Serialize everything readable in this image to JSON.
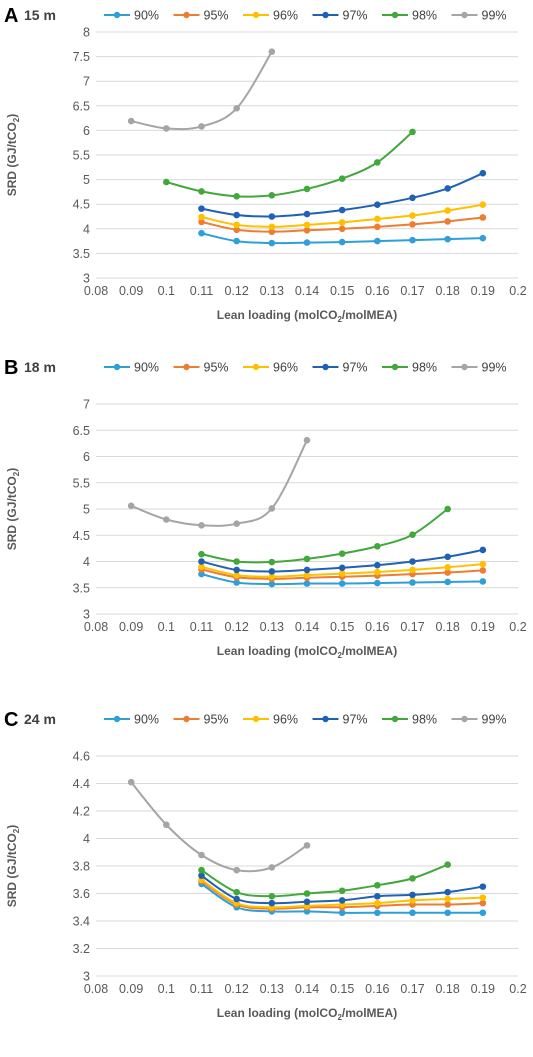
{
  "chart_data": [
    {
      "type": "line",
      "panel": "A",
      "title": "15 m",
      "xlabel": "Lean loading (molCO",
      "xlabel_sub": "2",
      "xlabel_end": "/molMEA)",
      "ylabel": "SRD (GJ/tCO",
      "ylabel_sub": "2",
      "ylabel_end": ")",
      "xlim": [
        0.08,
        0.2
      ],
      "ylim": [
        3,
        8
      ],
      "x_ticks": [
        "0.08",
        "0.09",
        "0.1",
        "0.11",
        "0.12",
        "0.13",
        "0.14",
        "0.15",
        "0.16",
        "0.17",
        "0.18",
        "0.19",
        "0.2"
      ],
      "y_ticks": [
        "3",
        "3.5",
        "4",
        "4.5",
        "5",
        "5.5",
        "6",
        "6.5",
        "7",
        "7.5",
        "8"
      ],
      "grid": true,
      "legend": "top",
      "series": [
        {
          "name": "90%",
          "color": "#2E9FD8",
          "x": [
            0.11,
            0.12,
            0.13,
            0.14,
            0.15,
            0.16,
            0.17,
            0.18,
            0.19
          ],
          "y": [
            3.91,
            3.75,
            3.71,
            3.72,
            3.73,
            3.75,
            3.77,
            3.79,
            3.81
          ]
        },
        {
          "name": "95%",
          "color": "#ED7D31",
          "x": [
            0.11,
            0.12,
            0.13,
            0.14,
            0.15,
            0.16,
            0.17,
            0.18,
            0.19
          ],
          "y": [
            4.14,
            3.98,
            3.94,
            3.97,
            4.0,
            4.04,
            4.09,
            4.15,
            4.23
          ]
        },
        {
          "name": "96%",
          "color": "#FFC000",
          "x": [
            0.11,
            0.12,
            0.13,
            0.14,
            0.15,
            0.16,
            0.17,
            0.18,
            0.19
          ],
          "y": [
            4.24,
            4.08,
            4.04,
            4.08,
            4.13,
            4.2,
            4.27,
            4.37,
            4.49
          ]
        },
        {
          "name": "97%",
          "color": "#1F62B5",
          "x": [
            0.11,
            0.12,
            0.13,
            0.14,
            0.15,
            0.16,
            0.17,
            0.18,
            0.19
          ],
          "y": [
            4.41,
            4.28,
            4.25,
            4.3,
            4.38,
            4.49,
            4.63,
            4.82,
            5.13
          ]
        },
        {
          "name": "98%",
          "color": "#41A83A",
          "x": [
            0.1,
            0.11,
            0.12,
            0.13,
            0.14,
            0.15,
            0.16,
            0.17
          ],
          "y": [
            4.95,
            4.76,
            4.66,
            4.68,
            4.81,
            5.02,
            5.35,
            5.97
          ]
        },
        {
          "name": "99%",
          "color": "#A5A5A5",
          "x": [
            0.09,
            0.1,
            0.11,
            0.12,
            0.13
          ],
          "y": [
            6.19,
            6.04,
            6.08,
            6.45,
            7.6
          ]
        }
      ]
    },
    {
      "type": "line",
      "panel": "B",
      "title": "18 m",
      "xlabel": "Lean loading (molCO",
      "xlabel_sub": "2",
      "xlabel_end": "/molMEA)",
      "ylabel": "SRD (GJ/tCO",
      "ylabel_sub": "2",
      "ylabel_end": ")",
      "xlim": [
        0.08,
        0.2
      ],
      "ylim": [
        3,
        7
      ],
      "x_ticks": [
        "0.08",
        "0.09",
        "0.1",
        "0.11",
        "0.12",
        "0.13",
        "0.14",
        "0.15",
        "0.16",
        "0.17",
        "0.18",
        "0.19",
        "0.2"
      ],
      "y_ticks": [
        "3",
        "3.5",
        "4",
        "4.5",
        "5",
        "5.5",
        "6",
        "6.5",
        "7"
      ],
      "grid": true,
      "legend": "top",
      "series": [
        {
          "name": "90%",
          "color": "#2E9FD8",
          "x": [
            0.11,
            0.12,
            0.13,
            0.14,
            0.15,
            0.16,
            0.17,
            0.18,
            0.19
          ],
          "y": [
            3.76,
            3.6,
            3.57,
            3.58,
            3.58,
            3.59,
            3.6,
            3.61,
            3.62
          ]
        },
        {
          "name": "95%",
          "color": "#ED7D31",
          "x": [
            0.11,
            0.12,
            0.13,
            0.14,
            0.15,
            0.16,
            0.17,
            0.18,
            0.19
          ],
          "y": [
            3.85,
            3.7,
            3.67,
            3.69,
            3.71,
            3.73,
            3.76,
            3.79,
            3.83
          ]
        },
        {
          "name": "96%",
          "color": "#FFC000",
          "x": [
            0.11,
            0.12,
            0.13,
            0.14,
            0.15,
            0.16,
            0.17,
            0.18,
            0.19
          ],
          "y": [
            3.9,
            3.74,
            3.71,
            3.74,
            3.77,
            3.8,
            3.84,
            3.89,
            3.95
          ]
        },
        {
          "name": "97%",
          "color": "#1F62B5",
          "x": [
            0.11,
            0.12,
            0.13,
            0.14,
            0.15,
            0.16,
            0.17,
            0.18,
            0.19
          ],
          "y": [
            4.0,
            3.84,
            3.81,
            3.84,
            3.88,
            3.93,
            4.0,
            4.09,
            4.22
          ]
        },
        {
          "name": "98%",
          "color": "#41A83A",
          "x": [
            0.11,
            0.12,
            0.13,
            0.14,
            0.15,
            0.16,
            0.17,
            0.18
          ],
          "y": [
            4.14,
            4.0,
            3.99,
            4.05,
            4.15,
            4.29,
            4.51,
            5.0
          ]
        },
        {
          "name": "99%",
          "color": "#A5A5A5",
          "x": [
            0.09,
            0.1,
            0.11,
            0.12,
            0.13,
            0.14
          ],
          "y": [
            5.06,
            4.8,
            4.69,
            4.72,
            5.01,
            6.31
          ]
        }
      ]
    },
    {
      "type": "line",
      "panel": "C",
      "title": "24 m",
      "xlabel": "Lean loading (molCO",
      "xlabel_sub": "2",
      "xlabel_end": "/molMEA)",
      "ylabel": "SRD (GJ/tCO",
      "ylabel_sub": "2",
      "ylabel_end": ")",
      "xlim": [
        0.08,
        0.2
      ],
      "ylim": [
        3,
        4.6
      ],
      "x_ticks": [
        "0.08",
        "0.09",
        "0.1",
        "0.11",
        "0.12",
        "0.13",
        "0.14",
        "0.15",
        "0.16",
        "0.17",
        "0.18",
        "0.19",
        "0.2"
      ],
      "y_ticks": [
        "3",
        "3.2",
        "3.4",
        "3.6",
        "3.8",
        "4",
        "4.2",
        "4.4",
        "4.6"
      ],
      "grid": true,
      "legend": "top",
      "series": [
        {
          "name": "90%",
          "color": "#2E9FD8",
          "x": [
            0.11,
            0.12,
            0.13,
            0.14,
            0.15,
            0.16,
            0.17,
            0.18,
            0.19
          ],
          "y": [
            3.67,
            3.5,
            3.47,
            3.47,
            3.46,
            3.46,
            3.46,
            3.46,
            3.46
          ]
        },
        {
          "name": "95%",
          "color": "#ED7D31",
          "x": [
            0.11,
            0.12,
            0.13,
            0.14,
            0.15,
            0.16,
            0.17,
            0.18,
            0.19
          ],
          "y": [
            3.69,
            3.52,
            3.49,
            3.5,
            3.5,
            3.51,
            3.52,
            3.52,
            3.53
          ]
        },
        {
          "name": "96%",
          "color": "#FFC000",
          "x": [
            0.11,
            0.12,
            0.13,
            0.14,
            0.15,
            0.16,
            0.17,
            0.18,
            0.19
          ],
          "y": [
            3.7,
            3.53,
            3.5,
            3.51,
            3.52,
            3.53,
            3.55,
            3.56,
            3.57
          ]
        },
        {
          "name": "97%",
          "color": "#1F62B5",
          "x": [
            0.11,
            0.12,
            0.13,
            0.14,
            0.15,
            0.16,
            0.17,
            0.18,
            0.19
          ],
          "y": [
            3.73,
            3.56,
            3.53,
            3.54,
            3.55,
            3.58,
            3.59,
            3.61,
            3.65
          ]
        },
        {
          "name": "98%",
          "color": "#41A83A",
          "x": [
            0.11,
            0.12,
            0.13,
            0.14,
            0.15,
            0.16,
            0.17,
            0.18
          ],
          "y": [
            3.77,
            3.61,
            3.58,
            3.6,
            3.62,
            3.66,
            3.71,
            3.81
          ]
        },
        {
          "name": "99%",
          "color": "#A5A5A5",
          "x": [
            0.09,
            0.1,
            0.11,
            0.12,
            0.13,
            0.14
          ],
          "y": [
            4.41,
            4.1,
            3.88,
            3.77,
            3.79,
            3.95
          ]
        }
      ]
    }
  ]
}
